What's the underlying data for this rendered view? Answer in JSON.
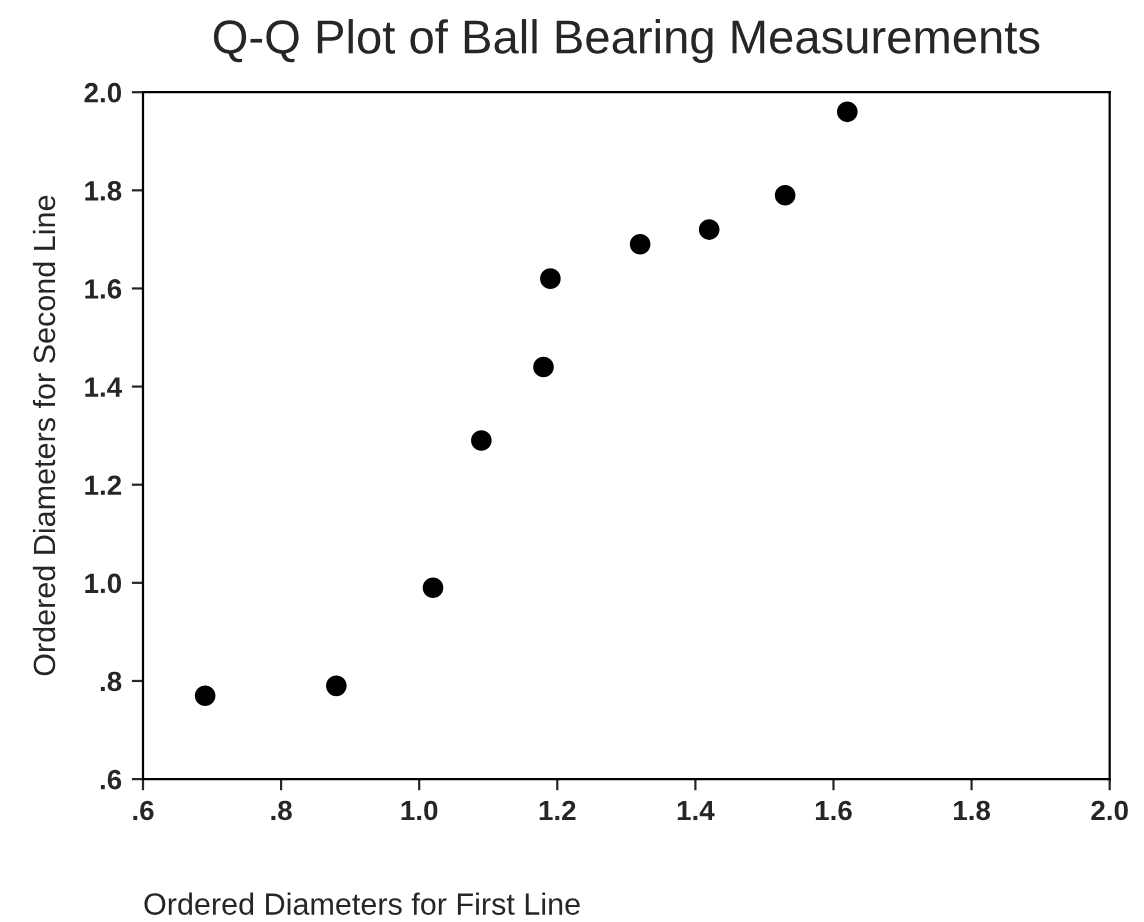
{
  "chart_data": {
    "type": "scatter",
    "title": "Q-Q Plot of Ball Bearing Measurements",
    "xlabel": "Ordered Diameters for First Line",
    "ylabel": "Ordered Diameters for Second Line",
    "x": [
      0.69,
      0.88,
      1.02,
      1.09,
      1.18,
      1.19,
      1.32,
      1.42,
      1.53,
      1.62
    ],
    "series": [
      {
        "color": "#000000",
        "values": [
          0.77,
          0.79,
          0.99,
          1.29,
          1.44,
          1.62,
          1.69,
          1.72,
          1.79,
          1.96
        ]
      }
    ],
    "marker": "circle",
    "grid": false,
    "legend": false,
    "xlim": [
      0.6,
      2.0
    ],
    "ylim": [
      0.6,
      2.0
    ],
    "xticks": [
      {
        "value": 0.6,
        "label": ".6"
      },
      {
        "value": 0.8,
        "label": ".8"
      },
      {
        "value": 1.0,
        "label": "1.0"
      },
      {
        "value": 1.2,
        "label": "1.2"
      },
      {
        "value": 1.4,
        "label": "1.4"
      },
      {
        "value": 1.6,
        "label": "1.6"
      },
      {
        "value": 1.8,
        "label": "1.8"
      },
      {
        "value": 2.0,
        "label": "2.0"
      }
    ],
    "yticks": [
      {
        "value": 0.6,
        "label": ".6"
      },
      {
        "value": 0.8,
        "label": ".8"
      },
      {
        "value": 1.0,
        "label": "1.0"
      },
      {
        "value": 1.2,
        "label": "1.2"
      },
      {
        "value": 1.4,
        "label": "1.4"
      },
      {
        "value": 1.6,
        "label": "1.6"
      },
      {
        "value": 1.8,
        "label": "1.8"
      },
      {
        "value": 2.0,
        "label": "2.0"
      }
    ]
  }
}
